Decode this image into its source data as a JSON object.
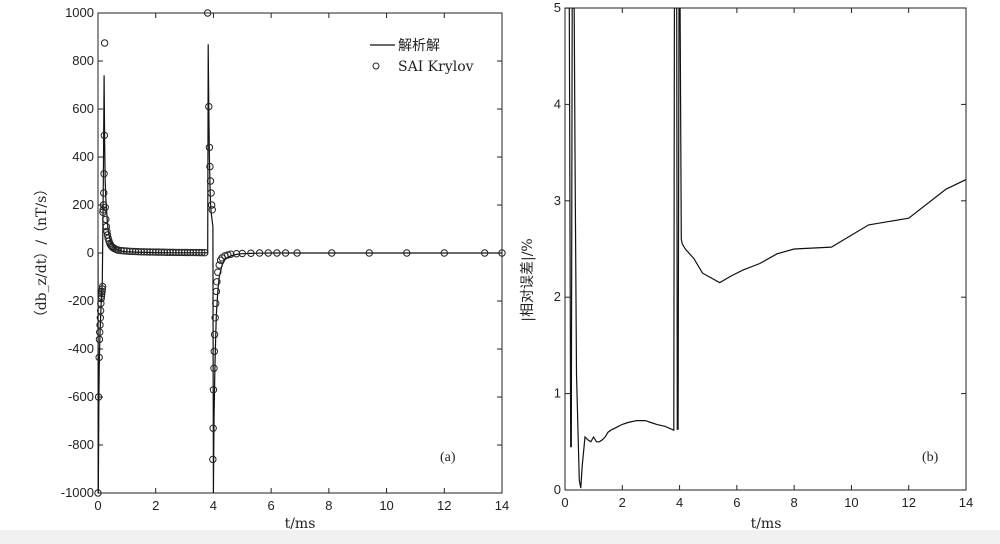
{
  "chart_data": [
    {
      "type": "line",
      "panel_label": "(a)",
      "xlabel": "t/ms",
      "ylabel": "（db_z/dt）/（nT/s）",
      "xlim": [
        0,
        14
      ],
      "ylim": [
        -1000,
        1000
      ],
      "x_ticks": [
        0,
        2,
        4,
        6,
        8,
        10,
        12,
        14
      ],
      "y_ticks": [
        -1000,
        -800,
        -600,
        -400,
        -200,
        0,
        200,
        400,
        600,
        800,
        1000
      ],
      "legend": {
        "placement": "top-right",
        "entries": [
          "解析解",
          "SAI Krylov"
        ]
      },
      "series": [
        {
          "name": "解析解",
          "style": "solid-line",
          "x": [
            0,
            0.01,
            0.03,
            0.05,
            0.07,
            0.09,
            0.11,
            0.13,
            0.15,
            0.17,
            0.19,
            0.21,
            0.23,
            0.25,
            0.27,
            0.3,
            0.33,
            0.36,
            0.4,
            0.45,
            0.5,
            0.55,
            0.6,
            0.7,
            0.8,
            0.9,
            1.0,
            1.2,
            1.4,
            1.6,
            1.8,
            2.0,
            2.5,
            3.0,
            3.5,
            3.8,
            3.82,
            3.84,
            3.86,
            3.88,
            3.9,
            3.92,
            3.94,
            3.96,
            3.98,
            4.0,
            4.02,
            4.05,
            4.08,
            4.1,
            4.15,
            4.2,
            4.3,
            4.4,
            4.5,
            4.6,
            4.8,
            5.0,
            5.5,
            6.0,
            7.0,
            8.0,
            10.0,
            12.0,
            14.0
          ],
          "y": [
            0,
            -1000,
            -600,
            -430,
            -340,
            -270,
            -210,
            -160,
            -120,
            120,
            380,
            740,
            480,
            300,
            230,
            170,
            120,
            90,
            65,
            45,
            32,
            24,
            18,
            12,
            8,
            6,
            5,
            4,
            3,
            2.5,
            2,
            1.5,
            1,
            1,
            1,
            1,
            870,
            600,
            400,
            280,
            210,
            170,
            150,
            130,
            110,
            -1000,
            -700,
            -480,
            -350,
            -260,
            -160,
            -100,
            -50,
            -28,
            -18,
            -12,
            -6,
            -3,
            -1,
            0,
            0,
            0,
            0,
            0,
            0
          ]
        },
        {
          "name": "SAI Krylov",
          "style": "open-circle",
          "x": [
            0.0,
            0.02,
            0.04,
            0.05,
            0.06,
            0.07,
            0.08,
            0.09,
            0.1,
            0.11,
            0.12,
            0.13,
            0.14,
            0.15,
            0.16,
            0.17,
            0.18,
            0.19,
            0.2,
            0.21,
            0.22,
            0.23,
            0.25,
            0.27,
            0.29,
            0.31,
            0.33,
            0.35,
            0.38,
            0.41,
            0.44,
            0.47,
            0.5,
            0.55,
            0.6,
            0.65,
            0.7,
            0.8,
            0.9,
            1.0,
            1.1,
            1.2,
            1.3,
            1.4,
            1.5,
            1.6,
            1.7,
            1.8,
            1.9,
            2.0,
            2.1,
            2.2,
            2.3,
            2.4,
            2.5,
            2.6,
            2.7,
            2.8,
            2.9,
            3.0,
            3.1,
            3.2,
            3.3,
            3.4,
            3.5,
            3.6,
            3.7,
            3.8,
            3.84,
            3.86,
            3.88,
            3.9,
            3.92,
            3.94,
            3.96,
            3.98,
            3.99,
            4.0,
            4.02,
            4.03,
            4.04,
            4.06,
            4.08,
            4.1,
            4.12,
            4.15,
            4.2,
            4.25,
            4.3,
            4.4,
            4.5,
            4.6,
            4.8,
            5.0,
            5.3,
            5.6,
            5.9,
            6.2,
            6.5,
            6.9,
            8.1,
            9.4,
            10.7,
            12.0,
            13.4,
            14.0
          ],
          "y": [
            -1000,
            -600,
            -435,
            -360,
            -330,
            -300,
            -270,
            -240,
            -210,
            -190,
            -180,
            -170,
            -160,
            -150,
            -140,
            170,
            180,
            200,
            250,
            330,
            490,
            875,
            190,
            140,
            110,
            90,
            75,
            62,
            50,
            40,
            33,
            28,
            24,
            20,
            17,
            14,
            12,
            10,
            9,
            8,
            7,
            6.5,
            6,
            5.5,
            5,
            4.8,
            4.5,
            4.2,
            4,
            3.8,
            3.6,
            3.4,
            3.2,
            3,
            2.8,
            2.6,
            2.5,
            2.4,
            2.3,
            2.2,
            2.1,
            2,
            1.9,
            1.8,
            1.7,
            1.6,
            1.5,
            1000,
            610,
            440,
            360,
            300,
            250,
            200,
            180,
            -860,
            -730,
            -570,
            -480,
            -410,
            -340,
            -270,
            -210,
            -160,
            -120,
            -80,
            -50,
            -30,
            -20,
            -12,
            -8,
            -5,
            -3,
            -2,
            -1,
            0,
            0,
            0,
            0,
            0,
            0,
            0,
            0,
            0,
            0,
            0
          ]
        }
      ]
    },
    {
      "type": "line",
      "panel_label": "(b)",
      "xlabel": "t/ms",
      "ylabel": "|相对误差|/%",
      "xlim": [
        0,
        14
      ],
      "ylim": [
        0,
        5
      ],
      "x_ticks": [
        0,
        2,
        4,
        6,
        8,
        10,
        12,
        14
      ],
      "y_ticks": [
        0,
        1,
        2,
        3,
        4,
        5
      ],
      "series": [
        {
          "x": [
            0.0,
            0.1,
            0.15,
            0.2,
            0.22,
            0.25,
            0.3,
            0.32,
            0.35,
            0.4,
            0.5,
            0.55,
            0.6,
            0.7,
            0.8,
            0.9,
            1.0,
            1.1,
            1.2,
            1.3,
            1.4,
            1.5,
            1.6,
            1.8,
            2.0,
            2.2,
            2.5,
            2.8,
            3.0,
            3.2,
            3.5,
            3.8,
            3.82,
            3.84,
            3.86,
            3.9,
            3.92,
            3.95,
            3.98,
            4.0,
            4.02,
            4.06,
            4.1,
            4.2,
            4.5,
            4.8,
            5.1,
            5.4,
            5.8,
            6.2,
            6.8,
            7.4,
            8.0,
            9.3,
            10.6,
            12.0,
            13.3,
            14.0
          ],
          "y": [
            5.0,
            5.0,
            5.0,
            0.45,
            0.45,
            5.0,
            5.0,
            5.0,
            3.5,
            1.2,
            0.1,
            0.02,
            0.25,
            0.55,
            0.52,
            0.5,
            0.55,
            0.5,
            0.5,
            0.52,
            0.55,
            0.6,
            0.62,
            0.65,
            0.68,
            0.7,
            0.72,
            0.72,
            0.7,
            0.68,
            0.66,
            0.62,
            5.0,
            5.0,
            5.0,
            5.0,
            0.63,
            0.63,
            5.0,
            5.0,
            5.0,
            2.6,
            2.55,
            2.5,
            2.4,
            2.25,
            2.2,
            2.15,
            2.22,
            2.28,
            2.35,
            2.45,
            2.5,
            2.52,
            2.75,
            2.82,
            3.12,
            3.22
          ]
        }
      ]
    }
  ]
}
